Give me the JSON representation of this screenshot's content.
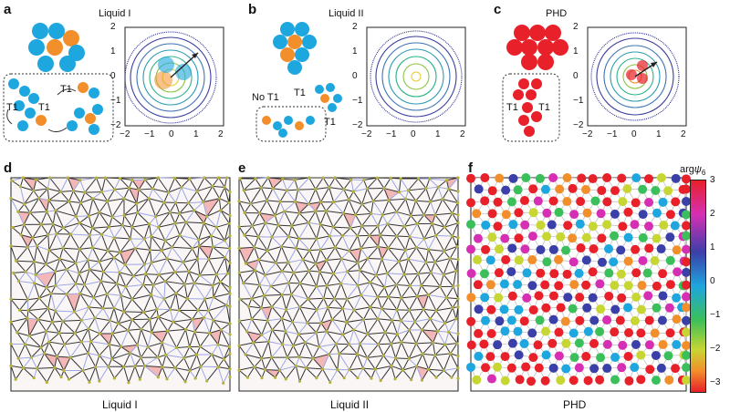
{
  "panels": {
    "a": {
      "letter": "a",
      "title": "Liquid I",
      "t1": "T1"
    },
    "b": {
      "letter": "b",
      "title": "Liquid II",
      "not1": "No T1",
      "t1": "T1"
    },
    "c": {
      "letter": "c",
      "title": "PHD",
      "t1": "T1"
    },
    "d": {
      "letter": "d",
      "caption": "Liquid I"
    },
    "e": {
      "letter": "e",
      "caption": "Liquid II"
    },
    "f": {
      "letter": "f",
      "caption": "PHD"
    }
  },
  "contour_ticks": {
    "x": [
      "−2",
      "−1",
      "0",
      "1",
      "2"
    ],
    "y": [
      "2",
      "1",
      "0",
      "−1",
      "−2"
    ]
  },
  "colorbar": {
    "label_main": "arg",
    "label_psi": "ψ",
    "label_sub": "6",
    "ticks": [
      "3",
      "2",
      "1",
      "0",
      "−1",
      "−2",
      "−3"
    ]
  },
  "colors": {
    "blue": "#1ea6df",
    "orange": "#f28f2b",
    "red": "#e8202a",
    "contour_outer": "#2b2f8f"
  }
}
